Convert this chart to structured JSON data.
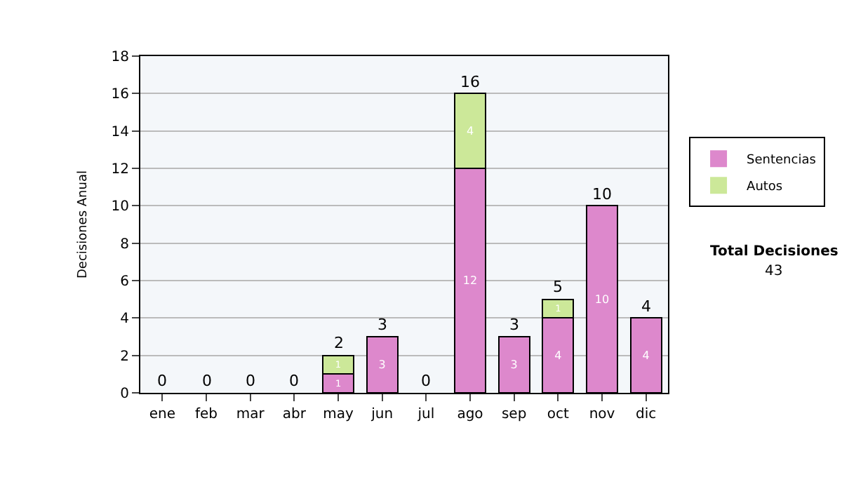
{
  "chart_data": {
    "type": "bar",
    "stacked": true,
    "ylabel": "Decisiones Anual",
    "categories": [
      "ene",
      "feb",
      "mar",
      "abr",
      "may",
      "jun",
      "jul",
      "ago",
      "sep",
      "oct",
      "nov",
      "dic"
    ],
    "series": [
      {
        "name": "Sentencias",
        "color": "#dd88cc",
        "values": [
          0,
          0,
          0,
          0,
          1,
          3,
          0,
          12,
          3,
          4,
          10,
          4
        ],
        "value_labels": [
          null,
          null,
          null,
          null,
          "1",
          "3",
          null,
          "12",
          "3",
          "4",
          "10",
          "4"
        ]
      },
      {
        "name": "Autos",
        "color": "#cce899",
        "values": [
          0,
          0,
          0,
          0,
          1,
          0,
          0,
          4,
          0,
          1,
          0,
          0
        ],
        "value_labels": [
          null,
          null,
          null,
          null,
          "1",
          null,
          null,
          "4",
          null,
          "1",
          null,
          null
        ]
      }
    ],
    "totals": [
      "0",
      "0",
      "0",
      "0",
      "2",
      "3",
      "0",
      "16",
      "3",
      "5",
      "10",
      "4"
    ],
    "ylim": [
      0,
      18
    ],
    "yticks": [
      0,
      2,
      4,
      6,
      8,
      10,
      12,
      14,
      16,
      18
    ],
    "grid": "y",
    "legend": "right",
    "annotations": [
      "Total Decisiones",
      "43"
    ]
  }
}
